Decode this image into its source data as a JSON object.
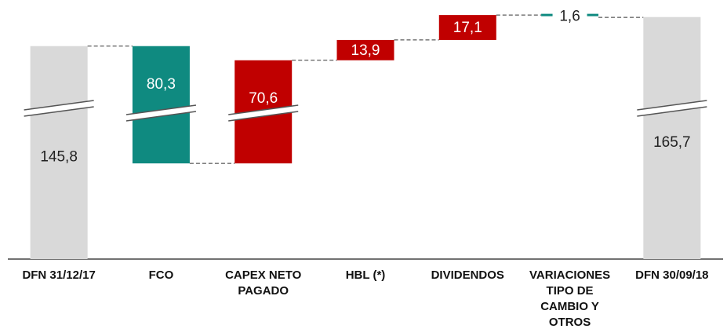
{
  "chart_data": {
    "type": "waterfall",
    "categories": [
      "DFN 31/12/17",
      "FCO",
      "CAPEX NETO PAGADO",
      "HBL (*)",
      "DIVIDENDOS",
      "VARIACIONES TIPO DE CAMBIO Y OTROS",
      "DFN 30/09/18"
    ],
    "values": [
      145.8,
      80.3,
      70.6,
      13.9,
      17.1,
      1.6,
      165.7
    ],
    "value_labels": [
      "145,8",
      "80,3",
      "70,6",
      "13,9",
      "17,1",
      "1,6",
      "165,7"
    ],
    "measures": [
      "total",
      "decrease",
      "increase",
      "increase",
      "increase",
      "decrease",
      "total"
    ],
    "colors": {
      "total": "#d9d9d9",
      "decrease": "#0f8a80",
      "increase": "#c00000"
    },
    "ylim": [
      0,
      172
    ]
  }
}
